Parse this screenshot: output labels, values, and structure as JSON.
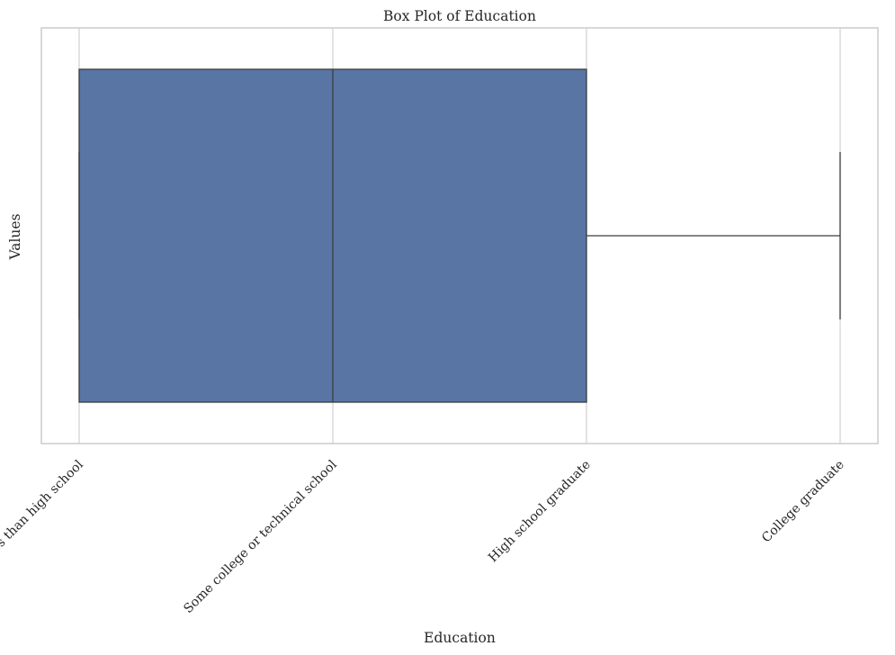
{
  "chart_data": {
    "type": "box",
    "title": "Box Plot of Education",
    "xlabel": "Education",
    "ylabel": "Values",
    "categories": [
      "Less than high school",
      "Some college or technical school",
      "High school graduate",
      "College graduate"
    ],
    "x_axis_orientation": "categorical, horizontal box",
    "box": {
      "whisker_low": "Less than high school",
      "q1": "Less than high school",
      "median": "Some college or technical school",
      "q3": "High school graduate",
      "whisker_high": "College graduate"
    },
    "y_ticks_shown": false,
    "grid": true,
    "legend": "none",
    "colors": {
      "box_fill": "#5875a4",
      "box_edge": "#3d3d3d",
      "grid": "#d0d0d0",
      "spine": "#cccccc"
    }
  }
}
